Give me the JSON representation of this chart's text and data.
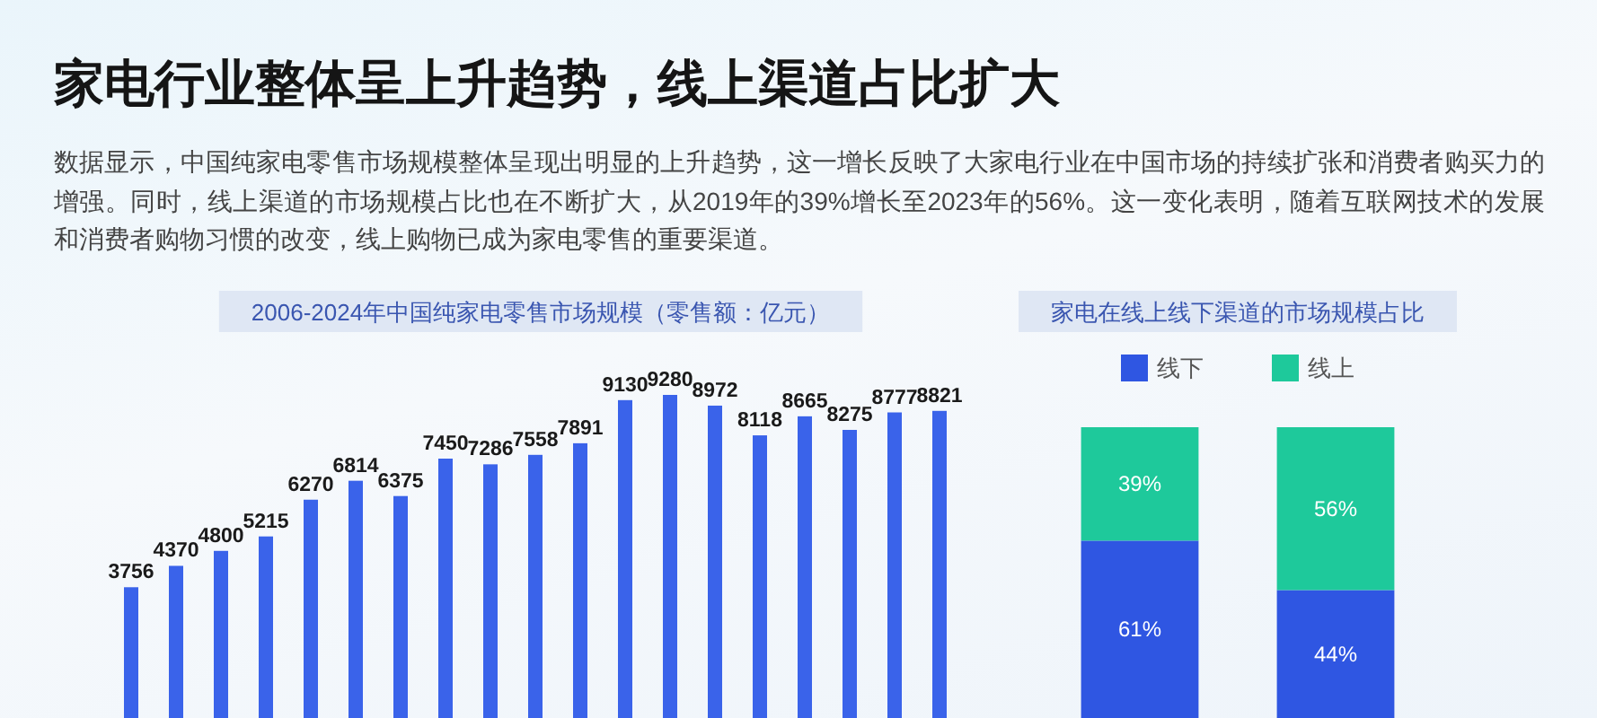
{
  "chart_data": [
    {
      "type": "bar",
      "title": "2006-2024年中国纯家电零售市场规模（零售额：亿元）",
      "annotations": [
        "家电行业整体呈上升趋势，线上渠道占比扩大",
        "数据显示，中国纯家电零售市场规模整体呈现出明显的上升趋势，这一增长反映了大家电行业在中国市场的持续扩张和消费者购买力的增强。同时，线上渠道的市场规模占比也在不断扩大，从2019年的39%增长至2023年的56%。这一变化表明，随着互联网技术的发展和消费者购物习惯的改变，线上购物已成为家电零售的重要渠道。"
      ],
      "categories": [
        null,
        null,
        null,
        null,
        null,
        null,
        null,
        null,
        null,
        null,
        null,
        null,
        null,
        null,
        null,
        null,
        null,
        null,
        null
      ],
      "values": [
        3756,
        4370,
        4800,
        5215,
        6270,
        6814,
        6375,
        7450,
        7286,
        7558,
        7891,
        9130,
        9280,
        8972,
        8118,
        8665,
        8275,
        8777,
        8821
      ],
      "color": "#3a63ea",
      "data_labels": true
    },
    {
      "type": "bar",
      "title": "家电在线上线下渠道的市场规模占比",
      "categories": [
        null,
        null
      ],
      "stacked": true,
      "legend": "top",
      "series": [
        {
          "name": "线下",
          "color": "#2f56e2",
          "values": [
            61,
            44
          ],
          "value_labels": [
            "61%",
            "44%"
          ]
        },
        {
          "name": "线上",
          "color": "#1ec99b",
          "values": [
            39,
            56
          ],
          "value_labels": [
            "39%",
            "56%"
          ]
        }
      ]
    }
  ]
}
